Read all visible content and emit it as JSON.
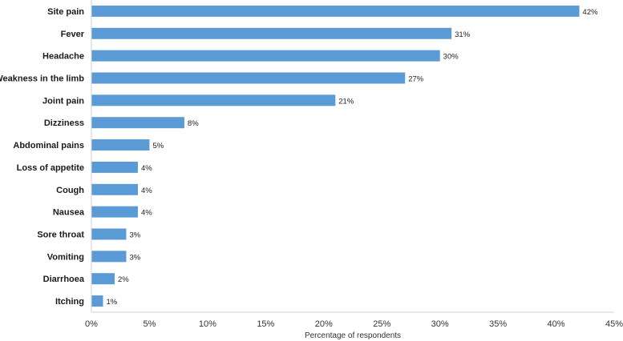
{
  "chart_data": {
    "type": "bar",
    "orientation": "horizontal",
    "categories": [
      "Site pain",
      "Fever",
      "Headache",
      "Weakness in the limb",
      "Joint pain",
      "Dizziness",
      "Abdominal pains",
      "Loss of appetite",
      "Cough",
      "Nausea",
      "Sore throat",
      "Vomiting",
      "Diarrhoea",
      "Itching"
    ],
    "values": [
      42,
      31,
      30,
      27,
      21,
      8,
      5,
      4,
      4,
      4,
      3,
      3,
      2,
      1
    ],
    "value_labels": [
      "42%",
      "31%",
      "30%",
      "27%",
      "21%",
      "8%",
      "5%",
      "4%",
      "4%",
      "4%",
      "3%",
      "3%",
      "2%",
      "1%"
    ],
    "xlabel": "Percentage of respondents",
    "ylabel": "",
    "xlim": [
      0,
      45
    ],
    "x_ticks": [
      0,
      5,
      10,
      15,
      20,
      25,
      30,
      35,
      40,
      45
    ],
    "x_tick_labels": [
      "0%",
      "5%",
      "10%",
      "15%",
      "20%",
      "25%",
      "30%",
      "35%",
      "40%",
      "45%"
    ],
    "grid": false,
    "bar_color": "#5b9bd5"
  }
}
